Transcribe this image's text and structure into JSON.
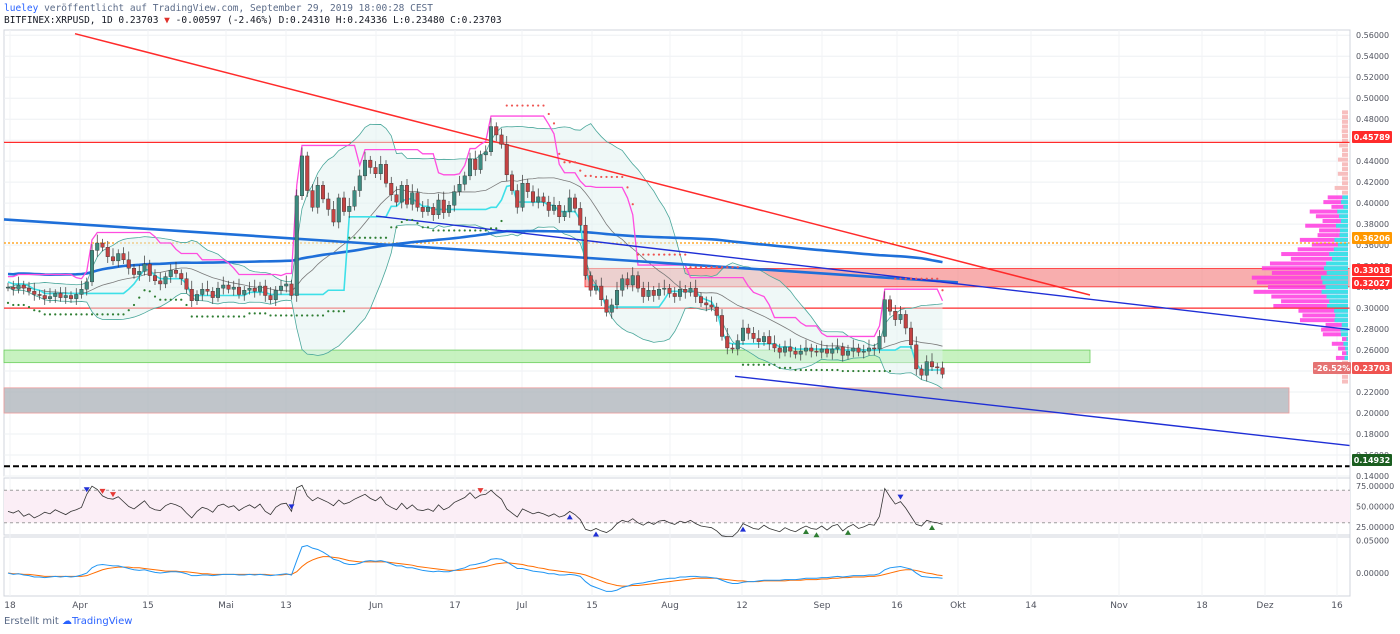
{
  "header": {
    "author": "lueley",
    "published_text": "veröffentlicht auf TradingView.com, September 29, 2019 18:00:28 CEST",
    "symbol_line": "BITFINEX:XRPUSD, 1D 0.23703",
    "change_arrow": "▼",
    "change_text": "-0.00597 (-2.46%) D:0.24310 H:0.24336 L:0.23480 C:0.23703"
  },
  "footer": {
    "created_with": "Erstellt mit",
    "brand": "TradingView",
    "logo_icon": "tradingview-cloud-icon"
  },
  "colors": {
    "up": "#26a69a",
    "down": "#ef5350",
    "candle_up": "#3d8b80",
    "candle_down": "#c44343",
    "trend_red": "#ff2b2b",
    "trend_blue": "#1f2fd6",
    "ma_blue": "#1e6fd9",
    "bb": "#4aa79b",
    "magenta": "#ff4de0",
    "cyan": "#3ee0e8"
  },
  "chart_data": {
    "type": "candlestick",
    "symbol": "BITFINEX:XRPUSD",
    "interval": "1D",
    "ylim": [
      0.14,
      0.565
    ],
    "y_ticks": [
      "0.56000",
      "0.54000",
      "0.52000",
      "0.50000",
      "0.48000",
      "0.46000",
      "0.44000",
      "0.42000",
      "0.40000",
      "0.38000",
      "0.36000",
      "0.34000",
      "0.32000",
      "0.30000",
      "0.28000",
      "0.26000",
      "0.24000",
      "0.22000",
      "0.20000",
      "0.18000",
      "0.16000",
      "0.14000"
    ],
    "x_ticks": [
      "18",
      "Apr",
      "15",
      "Mai",
      "13",
      "Jun",
      "17",
      "Jul",
      "15",
      "Aug",
      "12",
      "Sep",
      "16",
      "Okt",
      "14",
      "Nov",
      "18",
      "Dez",
      "16"
    ],
    "price_badges": [
      {
        "label": "0.45789",
        "value": 0.45789,
        "color": "#ff2b2b"
      },
      {
        "label": "0.36206",
        "value": 0.36206,
        "color": "#ff9800"
      },
      {
        "label": "0.33018",
        "value": 0.33018,
        "color": "#ff2b2b"
      },
      {
        "label": "0.32027",
        "value": 0.32027,
        "color": "#ff2b2b"
      },
      {
        "label": "-26.52%",
        "value": 0.23703,
        "color": "#e57373"
      },
      {
        "label": "0.23703",
        "value": 0.23703,
        "color": "#ef5350"
      },
      {
        "label": "0.14932",
        "value": 0.14932,
        "color": "#1b5e20"
      }
    ],
    "horizontal_levels": [
      {
        "value": 0.45789,
        "color": "#ff2b2b",
        "style": "solid"
      },
      {
        "value": 0.36206,
        "color": "#ff9800",
        "style": "dotted"
      },
      {
        "value": 0.3,
        "color": "#ff2b2b",
        "style": "solid"
      },
      {
        "value": 0.14932,
        "color": "#000000",
        "style": "dashed"
      }
    ],
    "zones": [
      {
        "from": 0.32027,
        "to": 0.33786,
        "color": "#f26b6b"
      },
      {
        "from": 0.248,
        "to": 0.26,
        "color": "#b9efb0"
      },
      {
        "from": 0.2,
        "to": 0.224,
        "color": "#b0b7bd"
      }
    ],
    "ohlc_close": [
      0.32,
      0.318,
      0.322,
      0.319,
      0.316,
      0.313,
      0.312,
      0.309,
      0.311,
      0.314,
      0.31,
      0.312,
      0.309,
      0.313,
      0.318,
      0.325,
      0.355,
      0.362,
      0.358,
      0.349,
      0.345,
      0.352,
      0.346,
      0.338,
      0.332,
      0.335,
      0.342,
      0.331,
      0.326,
      0.323,
      0.33,
      0.336,
      0.333,
      0.328,
      0.318,
      0.307,
      0.313,
      0.318,
      0.316,
      0.31,
      0.319,
      0.322,
      0.318,
      0.32,
      0.313,
      0.317,
      0.319,
      0.316,
      0.321,
      0.312,
      0.308,
      0.317,
      0.321,
      0.323,
      0.312,
      0.407,
      0.445,
      0.412,
      0.396,
      0.417,
      0.404,
      0.394,
      0.382,
      0.405,
      0.392,
      0.397,
      0.412,
      0.426,
      0.441,
      0.434,
      0.428,
      0.437,
      0.419,
      0.408,
      0.401,
      0.417,
      0.399,
      0.41,
      0.396,
      0.392,
      0.396,
      0.389,
      0.403,
      0.391,
      0.398,
      0.411,
      0.418,
      0.426,
      0.442,
      0.432,
      0.446,
      0.449,
      0.473,
      0.465,
      0.456,
      0.427,
      0.412,
      0.396,
      0.419,
      0.411,
      0.401,
      0.406,
      0.401,
      0.393,
      0.398,
      0.387,
      0.392,
      0.405,
      0.395,
      0.379,
      0.331,
      0.317,
      0.321,
      0.308,
      0.296,
      0.303,
      0.317,
      0.328,
      0.322,
      0.331,
      0.319,
      0.311,
      0.317,
      0.312,
      0.318,
      0.319,
      0.314,
      0.311,
      0.318,
      0.315,
      0.319,
      0.311,
      0.305,
      0.303,
      0.301,
      0.293,
      0.273,
      0.262,
      0.261,
      0.269,
      0.281,
      0.276,
      0.271,
      0.268,
      0.273,
      0.266,
      0.262,
      0.258,
      0.263,
      0.259,
      0.256,
      0.259,
      0.262,
      0.259,
      0.258,
      0.261,
      0.257,
      0.261,
      0.263,
      0.255,
      0.259,
      0.262,
      0.258,
      0.259,
      0.262,
      0.261,
      0.273,
      0.308,
      0.297,
      0.289,
      0.294,
      0.281,
      0.265,
      0.242,
      0.236,
      0.249,
      0.244,
      0.243,
      0.237
    ]
  },
  "indicator_rsi": {
    "y_ticks": [
      "75.00000",
      "50.00000",
      "25.00000"
    ],
    "ylim": [
      15,
      85
    ],
    "upper": 70,
    "lower": 30,
    "values": [
      44,
      42,
      45,
      38,
      41,
      36,
      39,
      43,
      41,
      46,
      43,
      40,
      44,
      46,
      49,
      65,
      75,
      71,
      63,
      60,
      59,
      62,
      56,
      50,
      47,
      52,
      57,
      49,
      46,
      45,
      51,
      54,
      52,
      49,
      42,
      36,
      44,
      49,
      47,
      43,
      51,
      53,
      49,
      51,
      45,
      49,
      52,
      48,
      53,
      44,
      40,
      49,
      53,
      54,
      44,
      73,
      76,
      63,
      57,
      61,
      58,
      55,
      51,
      58,
      53,
      55,
      59,
      62,
      65,
      60,
      57,
      62,
      53,
      49,
      46,
      54,
      47,
      52,
      46,
      45,
      47,
      44,
      52,
      46,
      49,
      55,
      58,
      61,
      67,
      60,
      64,
      65,
      70,
      64,
      59,
      47,
      42,
      37,
      47,
      44,
      41,
      43,
      41,
      38,
      41,
      37,
      39,
      44,
      40,
      34,
      22,
      20,
      23,
      20,
      18,
      22,
      29,
      33,
      31,
      35,
      30,
      27,
      31,
      28,
      32,
      33,
      30,
      28,
      32,
      30,
      33,
      29,
      26,
      25,
      24,
      20,
      14,
      13,
      13,
      19,
      29,
      26,
      23,
      22,
      27,
      23,
      21,
      19,
      24,
      21,
      19,
      23,
      26,
      23,
      22,
      26,
      21,
      26,
      28,
      20,
      25,
      28,
      23,
      25,
      28,
      27,
      38,
      72,
      62,
      53,
      56,
      48,
      38,
      28,
      26,
      33,
      31,
      30,
      28
    ]
  },
  "indicator_osc": {
    "y_ticks": [
      "0.05000",
      "0.00000"
    ],
    "ylim": [
      -0.035,
      0.055
    ],
    "macd": [
      0.0,
      -0.002,
      -0.001,
      -0.003,
      -0.004,
      -0.006,
      -0.006,
      -0.007,
      -0.006,
      -0.005,
      -0.006,
      -0.005,
      -0.006,
      -0.005,
      -0.003,
      0.0,
      0.008,
      0.012,
      0.013,
      0.012,
      0.011,
      0.011,
      0.009,
      0.007,
      0.005,
      0.004,
      0.005,
      0.003,
      0.001,
      0.0,
      0.001,
      0.002,
      0.002,
      0.001,
      -0.001,
      -0.004,
      -0.004,
      -0.003,
      -0.003,
      -0.004,
      -0.003,
      -0.002,
      -0.002,
      -0.002,
      -0.003,
      -0.003,
      -0.002,
      -0.003,
      -0.002,
      -0.003,
      -0.004,
      -0.003,
      -0.002,
      -0.001,
      -0.003,
      0.019,
      0.04,
      0.042,
      0.038,
      0.036,
      0.032,
      0.027,
      0.021,
      0.019,
      0.015,
      0.013,
      0.013,
      0.015,
      0.018,
      0.019,
      0.018,
      0.019,
      0.017,
      0.014,
      0.011,
      0.011,
      0.008,
      0.008,
      0.006,
      0.004,
      0.003,
      0.002,
      0.003,
      0.002,
      0.002,
      0.004,
      0.006,
      0.008,
      0.012,
      0.013,
      0.015,
      0.017,
      0.021,
      0.022,
      0.021,
      0.017,
      0.012,
      0.007,
      0.007,
      0.005,
      0.003,
      0.002,
      0.001,
      -0.001,
      -0.001,
      -0.003,
      -0.003,
      -0.002,
      -0.003,
      -0.005,
      -0.013,
      -0.019,
      -0.022,
      -0.025,
      -0.028,
      -0.028,
      -0.026,
      -0.022,
      -0.02,
      -0.017,
      -0.016,
      -0.015,
      -0.013,
      -0.012,
      -0.01,
      -0.009,
      -0.008,
      -0.008,
      -0.006,
      -0.006,
      -0.005,
      -0.005,
      -0.006,
      -0.006,
      -0.007,
      -0.008,
      -0.011,
      -0.014,
      -0.016,
      -0.016,
      -0.014,
      -0.013,
      -0.013,
      -0.012,
      -0.011,
      -0.011,
      -0.011,
      -0.011,
      -0.01,
      -0.01,
      -0.01,
      -0.009,
      -0.008,
      -0.008,
      -0.008,
      -0.007,
      -0.007,
      -0.006,
      -0.005,
      -0.006,
      -0.005,
      -0.004,
      -0.004,
      -0.004,
      -0.003,
      -0.003,
      -0.001,
      0.005,
      0.008,
      0.009,
      0.01,
      0.008,
      0.006,
      0.0,
      -0.005,
      -0.006,
      -0.007,
      -0.007,
      -0.008
    ],
    "signal": [
      0.0,
      -0.001,
      -0.001,
      -0.002,
      -0.002,
      -0.003,
      -0.004,
      -0.005,
      -0.005,
      -0.005,
      -0.005,
      -0.005,
      -0.005,
      -0.005,
      -0.005,
      -0.004,
      -0.001,
      0.002,
      0.005,
      0.007,
      0.008,
      0.009,
      0.009,
      0.009,
      0.008,
      0.008,
      0.007,
      0.006,
      0.005,
      0.004,
      0.003,
      0.003,
      0.003,
      0.002,
      0.002,
      0.001,
      0.0,
      -0.001,
      -0.001,
      -0.002,
      -0.002,
      -0.002,
      -0.002,
      -0.002,
      -0.002,
      -0.002,
      -0.002,
      -0.002,
      -0.002,
      -0.002,
      -0.003,
      -0.003,
      -0.003,
      -0.002,
      -0.002,
      0.002,
      0.01,
      0.016,
      0.02,
      0.023,
      0.025,
      0.025,
      0.024,
      0.023,
      0.021,
      0.019,
      0.018,
      0.017,
      0.017,
      0.017,
      0.017,
      0.017,
      0.017,
      0.016,
      0.015,
      0.014,
      0.013,
      0.012,
      0.01,
      0.009,
      0.008,
      0.007,
      0.006,
      0.005,
      0.004,
      0.004,
      0.004,
      0.005,
      0.006,
      0.007,
      0.009,
      0.01,
      0.012,
      0.014,
      0.015,
      0.016,
      0.015,
      0.014,
      0.013,
      0.011,
      0.01,
      0.008,
      0.007,
      0.005,
      0.004,
      0.003,
      0.002,
      0.001,
      0.0,
      -0.001,
      -0.003,
      -0.006,
      -0.009,
      -0.012,
      -0.015,
      -0.017,
      -0.019,
      -0.02,
      -0.02,
      -0.019,
      -0.019,
      -0.018,
      -0.017,
      -0.016,
      -0.015,
      -0.014,
      -0.013,
      -0.012,
      -0.011,
      -0.01,
      -0.009,
      -0.008,
      -0.008,
      -0.008,
      -0.008,
      -0.008,
      -0.009,
      -0.01,
      -0.011,
      -0.012,
      -0.012,
      -0.013,
      -0.013,
      -0.013,
      -0.012,
      -0.012,
      -0.012,
      -0.012,
      -0.012,
      -0.011,
      -0.011,
      -0.011,
      -0.01,
      -0.01,
      -0.01,
      -0.009,
      -0.009,
      -0.008,
      -0.008,
      -0.007,
      -0.007,
      -0.006,
      -0.006,
      -0.006,
      -0.005,
      -0.005,
      -0.004,
      -0.002,
      0.0,
      0.002,
      0.004,
      0.005,
      0.005,
      0.004,
      0.002,
      0.0,
      -0.001,
      -0.003,
      -0.004
    ]
  }
}
